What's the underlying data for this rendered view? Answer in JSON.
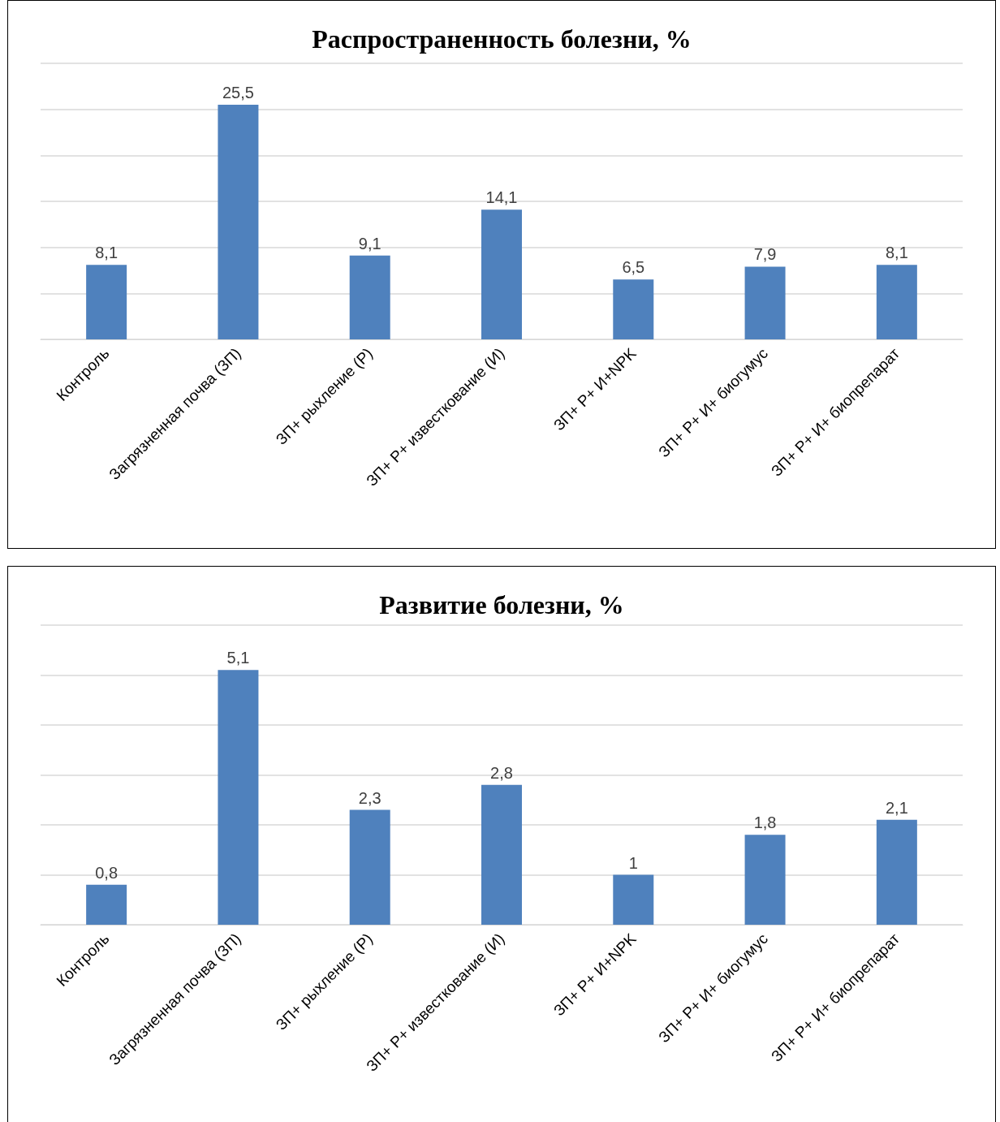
{
  "chart_data": [
    {
      "type": "bar",
      "title": "Распространенность болезни, %",
      "categories": [
        "Контроль",
        "Загрязненная почва (ЗП)",
        "ЗП+ рыхление (Р)",
        "ЗП+ Р+ известкование (И)",
        "ЗП+ Р+ И+NPK",
        "ЗП+ Р+ И+ биогумус",
        "ЗП+ Р+ И+ биопрепарат"
      ],
      "values": [
        8.1,
        25.5,
        9.1,
        14.1,
        6.5,
        7.9,
        8.1
      ],
      "value_labels": [
        "8,1",
        "25,5",
        "9,1",
        "14,1",
        "6,5",
        "7,9",
        "8,1"
      ],
      "color": "#4f81bd",
      "grid": "y",
      "tick_labels": "x"
    },
    {
      "type": "bar",
      "title": "Развитие болезни, %",
      "categories": [
        "Контроль",
        "Загрязненная почва (ЗП)",
        "ЗП+ рыхление (Р)",
        "ЗП+ Р+ известкование (И)",
        "ЗП+ Р+ И+NPK",
        "ЗП+ Р+ И+ биогумус",
        "ЗП+ Р+ И+ биопрепарат"
      ],
      "values": [
        0.8,
        5.1,
        2.3,
        2.8,
        1,
        1.8,
        2.1
      ],
      "value_labels": [
        "0,8",
        "5,1",
        "2,3",
        "2,8",
        "1",
        "1,8",
        "2,1"
      ],
      "color": "#4f81bd",
      "grid": "y",
      "tick_labels": "x"
    }
  ]
}
